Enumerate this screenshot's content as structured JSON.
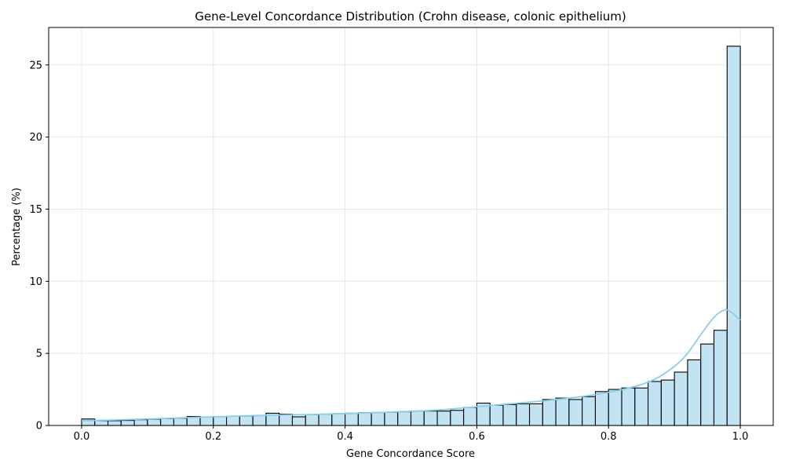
{
  "chart_data": {
    "type": "bar",
    "title": "Gene-Level Concordance Distribution (Crohn disease, colonic epithelium)",
    "xlabel": "Gene Concordance Score",
    "ylabel": "Percentage (%)",
    "xlim": [
      -0.05,
      1.05
    ],
    "ylim": [
      0,
      27.6
    ],
    "bin_width": 0.02,
    "x_ticks": [
      0.0,
      0.2,
      0.4,
      0.6,
      0.8,
      1.0
    ],
    "x_tick_labels": [
      "0.0",
      "0.2",
      "0.4",
      "0.6",
      "0.8",
      "1.0"
    ],
    "y_ticks": [
      0,
      5,
      10,
      15,
      20,
      25
    ],
    "y_tick_labels": [
      "0",
      "5",
      "10",
      "15",
      "20",
      "25"
    ],
    "grid": true,
    "bar_color": "#c1e3f2",
    "bar_edge_color": "#000000",
    "kde_color": "#87ceeb",
    "bins": [
      0.0,
      0.02,
      0.04,
      0.06,
      0.08,
      0.1,
      0.12,
      0.14,
      0.16,
      0.18,
      0.2,
      0.22,
      0.24,
      0.26,
      0.28,
      0.3,
      0.32,
      0.34,
      0.36,
      0.38,
      0.4,
      0.42,
      0.44,
      0.46,
      0.48,
      0.5,
      0.52,
      0.54,
      0.56,
      0.58,
      0.6,
      0.62,
      0.64,
      0.66,
      0.68,
      0.7,
      0.72,
      0.74,
      0.76,
      0.78,
      0.8,
      0.82,
      0.84,
      0.86,
      0.88,
      0.9,
      0.92,
      0.94,
      0.96,
      0.98
    ],
    "values": [
      0.45,
      0.33,
      0.33,
      0.35,
      0.4,
      0.43,
      0.47,
      0.5,
      0.62,
      0.58,
      0.62,
      0.65,
      0.65,
      0.7,
      0.85,
      0.78,
      0.6,
      0.75,
      0.78,
      0.82,
      0.85,
      0.88,
      0.9,
      0.92,
      0.95,
      1.0,
      1.0,
      1.0,
      1.05,
      1.25,
      1.55,
      1.4,
      1.45,
      1.5,
      1.5,
      1.8,
      1.9,
      1.8,
      2.0,
      2.35,
      2.5,
      2.6,
      2.6,
      3.05,
      3.15,
      3.7,
      4.55,
      5.65,
      6.6,
      26.3
    ],
    "kde": {
      "x": [
        0.0,
        0.05,
        0.1,
        0.15,
        0.2,
        0.25,
        0.3,
        0.35,
        0.4,
        0.45,
        0.5,
        0.55,
        0.6,
        0.65,
        0.7,
        0.75,
        0.8,
        0.84,
        0.87,
        0.9,
        0.92,
        0.94,
        0.96,
        0.975,
        0.985,
        0.995,
        1.0
      ],
      "y": [
        0.33,
        0.38,
        0.45,
        0.52,
        0.6,
        0.67,
        0.72,
        0.76,
        0.82,
        0.9,
        0.98,
        1.1,
        1.3,
        1.5,
        1.7,
        1.95,
        2.3,
        2.7,
        3.2,
        4.1,
        5.0,
        6.3,
        7.5,
        8.0,
        7.9,
        7.5,
        7.3
      ]
    }
  }
}
